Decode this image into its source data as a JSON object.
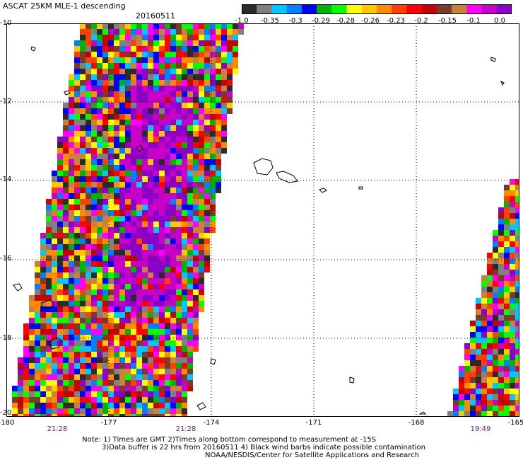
{
  "header": {
    "title": "ASCAT 25KM MLE-1 descending",
    "date": "20160511"
  },
  "colorbar": {
    "colors": [
      "#2b2b2b",
      "#808080",
      "#00c8ff",
      "#0080ff",
      "#0000ff",
      "#00b400",
      "#00ff00",
      "#ffff00",
      "#ffc800",
      "#ff8c00",
      "#ff4000",
      "#ff0000",
      "#c80000",
      "#783c28",
      "#c8823c",
      "#ff00ff",
      "#c800c8",
      "#8c00c8"
    ],
    "labels": [
      "-1.0",
      "-0.35",
      "-0.3",
      "-0.29",
      "-0.28",
      "-0.26",
      "-0.23",
      "-0.2",
      "-0.15",
      "-0.1",
      "0.0"
    ]
  },
  "map": {
    "lat_labels": [
      "-10",
      "-12",
      "-14",
      "-16",
      "-18",
      "-20"
    ],
    "lon_labels": [
      "-180",
      "-177",
      "-174",
      "-171",
      "-168",
      "-165"
    ],
    "time_labels": [
      "21:28",
      "21:28",
      "19:49"
    ],
    "palette": [
      "#2b2b2b",
      "#808080",
      "#00c8ff",
      "#0080ff",
      "#0000ff",
      "#00b400",
      "#00ff00",
      "#ffff00",
      "#ffc800",
      "#ff8c00",
      "#ff4000",
      "#ff0000",
      "#c80000",
      "#783c28",
      "#c8823c",
      "#ff00ff",
      "#c800c8",
      "#8c00c8"
    ]
  },
  "notes": {
    "line1": "Note: 1) Times are GMT 2)Times along bottom correspond to measurement at -15S",
    "line2": "3)Data buffer is 22 hrs from 20160511 4) Black wind barbs indicate possible contamination",
    "line3": "NOAA/NESDIS/Center for Satellite Applications and Research"
  }
}
